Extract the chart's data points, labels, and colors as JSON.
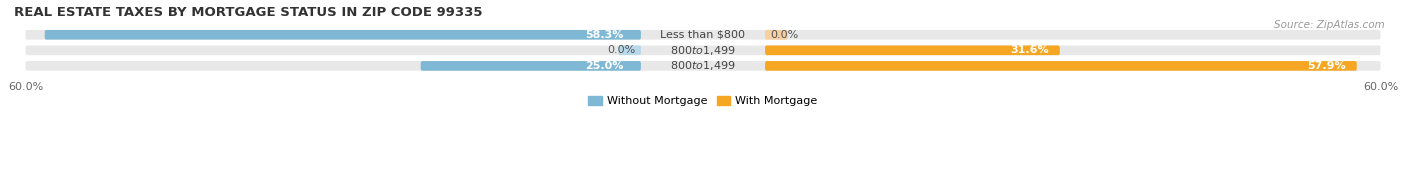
{
  "title": "REAL ESTATE TAXES BY MORTGAGE STATUS IN ZIP CODE 99335",
  "source": "Source: ZipAtlas.com",
  "rows": [
    {
      "label": "Less than $800",
      "without_mortgage": 58.3,
      "with_mortgage": 0.0,
      "wm_label_inside": true,
      "wom_label_inside": false
    },
    {
      "label": "$800 to $1,499",
      "without_mortgage": 0.0,
      "with_mortgage": 31.6,
      "wm_label_inside": false,
      "wom_label_inside": false
    },
    {
      "label": "$800 to $1,499",
      "without_mortgage": 25.0,
      "with_mortgage": 57.9,
      "wm_label_inside": false,
      "wom_label_inside": true
    }
  ],
  "x_max": 60.0,
  "blue_color": "#7eb8d4",
  "blue_light_color": "#b8d9ea",
  "orange_color": "#f5a623",
  "orange_light_color": "#f7cfa0",
  "bg_color": "#e8e8e8",
  "title_fontsize": 9.5,
  "source_fontsize": 7.5,
  "value_fontsize": 8,
  "label_fontsize": 8,
  "tick_fontsize": 8,
  "legend_label_without": "Without Mortgage",
  "legend_label_with": "With Mortgage",
  "figsize": [
    14.06,
    1.96
  ],
  "dpi": 100
}
